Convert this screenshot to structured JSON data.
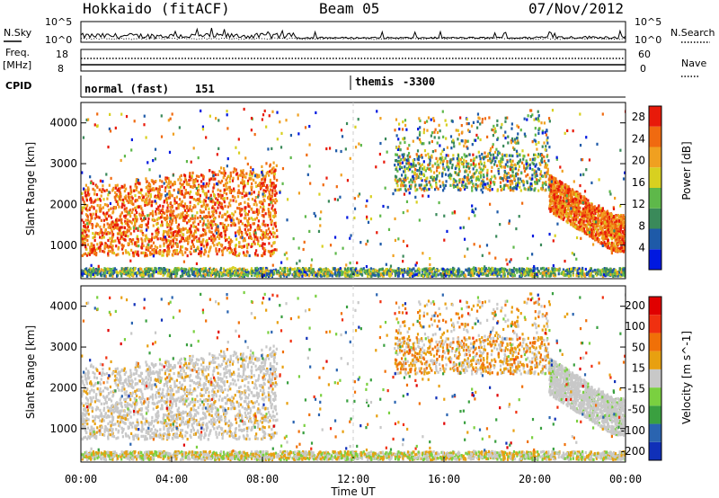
{
  "chart_data": {
    "type": "heatmap",
    "header": {
      "title": "Hokkaido (fitACF)",
      "beam": "Beam 05",
      "date": "07/Nov/2012"
    },
    "noise_panel": {
      "left_label": "N.Sky",
      "right_label": "N.Search",
      "left_ticks": [
        "10^5",
        "10^0"
      ],
      "right_ticks": [
        "10^5",
        "10^0"
      ]
    },
    "freq_panel": {
      "left_label_top": "Freq.",
      "left_label_unit": "[MHz]",
      "left_ticks": [
        "18",
        "8"
      ],
      "right_label": "Nave",
      "right_ticks": [
        "60",
        "0"
      ]
    },
    "cpid_panel": {
      "label": "CPID",
      "programs": [
        {
          "name": "normal (fast)",
          "id": "151",
          "start_hour": 0
        },
        {
          "name": "themis",
          "id": "-3300",
          "start_hour": 12
        }
      ]
    },
    "x_axis": {
      "label": "Time UT",
      "ticks": [
        "00:00",
        "04:00",
        "08:00",
        "12:00",
        "16:00",
        "20:00",
        "00:00"
      ],
      "range_hours": [
        0,
        24
      ]
    },
    "y_axis": {
      "label": "Slant Range [km]",
      "ticks": [
        "1000",
        "2000",
        "3000",
        "4000"
      ],
      "range": [
        180,
        4500
      ]
    },
    "power": {
      "colorbar_label": "Power [dB]",
      "colorbar_ticks": [
        "4",
        "8",
        "12",
        "16",
        "20",
        "24",
        "28"
      ],
      "range": [
        0,
        30
      ],
      "colors": [
        "#0018e0",
        "#1e5aa8",
        "#3a8a5a",
        "#5eb84a",
        "#d8d020",
        "#f0a020",
        "#f06a10",
        "#e81a0a"
      ]
    },
    "velocity": {
      "colorbar_label": "Velocity [m s^-1]",
      "colorbar_ticks": [
        "200",
        "100",
        "50",
        "15",
        "-15",
        "-50",
        "-100",
        "-200"
      ],
      "range": [
        -250,
        250
      ],
      "colors": [
        "#1030b8",
        "#2a64b0",
        "#3aa040",
        "#7ad040",
        "#c8c8c8",
        "#e8a010",
        "#f07008",
        "#f03010",
        "#e00000"
      ]
    }
  }
}
